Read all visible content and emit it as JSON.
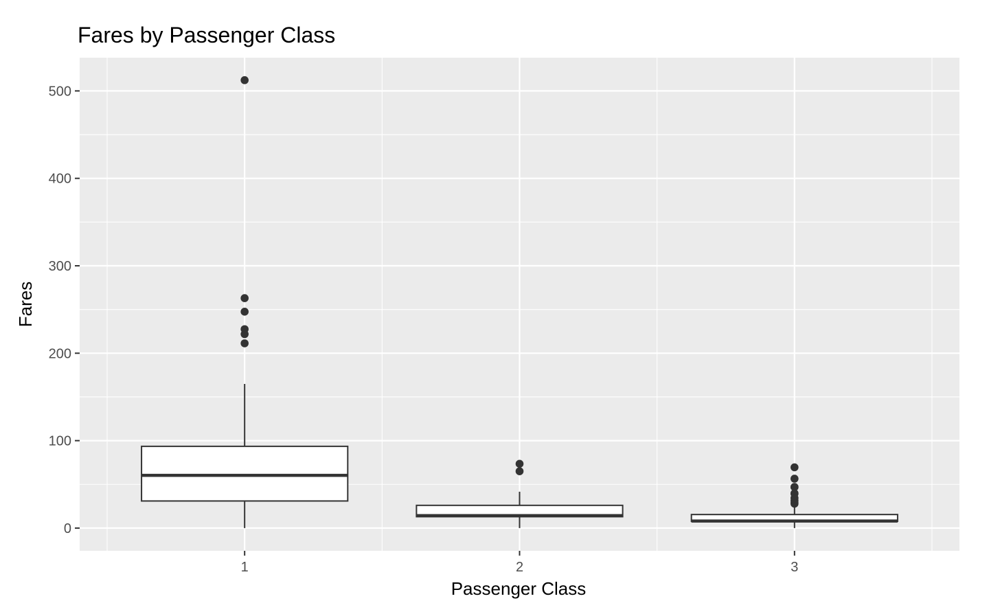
{
  "chart_data": {
    "type": "boxplot",
    "title": "Fares by Passenger Class",
    "xlabel": "Passenger Class",
    "ylabel": "Fares",
    "categories": [
      "1",
      "2",
      "3"
    ],
    "ylim": [
      -26,
      538
    ],
    "y_ticks": [
      0,
      100,
      200,
      300,
      400,
      500
    ],
    "grid": true,
    "boxes": [
      {
        "category": "1",
        "q1": 31,
        "median": 60.3,
        "q3": 93.5,
        "whisker_low": 0,
        "whisker_high": 164.9,
        "outliers": [
          512.3,
          263,
          247.5,
          227.5,
          221.8,
          211.3
        ]
      },
      {
        "category": "2",
        "q1": 13,
        "median": 14.3,
        "q3": 26,
        "whisker_low": 0,
        "whisker_high": 41.6,
        "outliers": [
          73.5,
          65
        ]
      },
      {
        "category": "3",
        "q1": 7.75,
        "median": 8.05,
        "q3": 15.5,
        "whisker_low": 0,
        "whisker_high": 23.5,
        "outliers": [
          69.5,
          56.5,
          47,
          46.9,
          39.7,
          39.4,
          34.4,
          31.4,
          29.1,
          27.9
        ]
      }
    ],
    "colors": {
      "panel_background": "#ebebeb",
      "grid_line": "#ffffff",
      "box_fill": "#ffffff",
      "box_stroke": "#333333",
      "outlier": "#333333"
    }
  }
}
